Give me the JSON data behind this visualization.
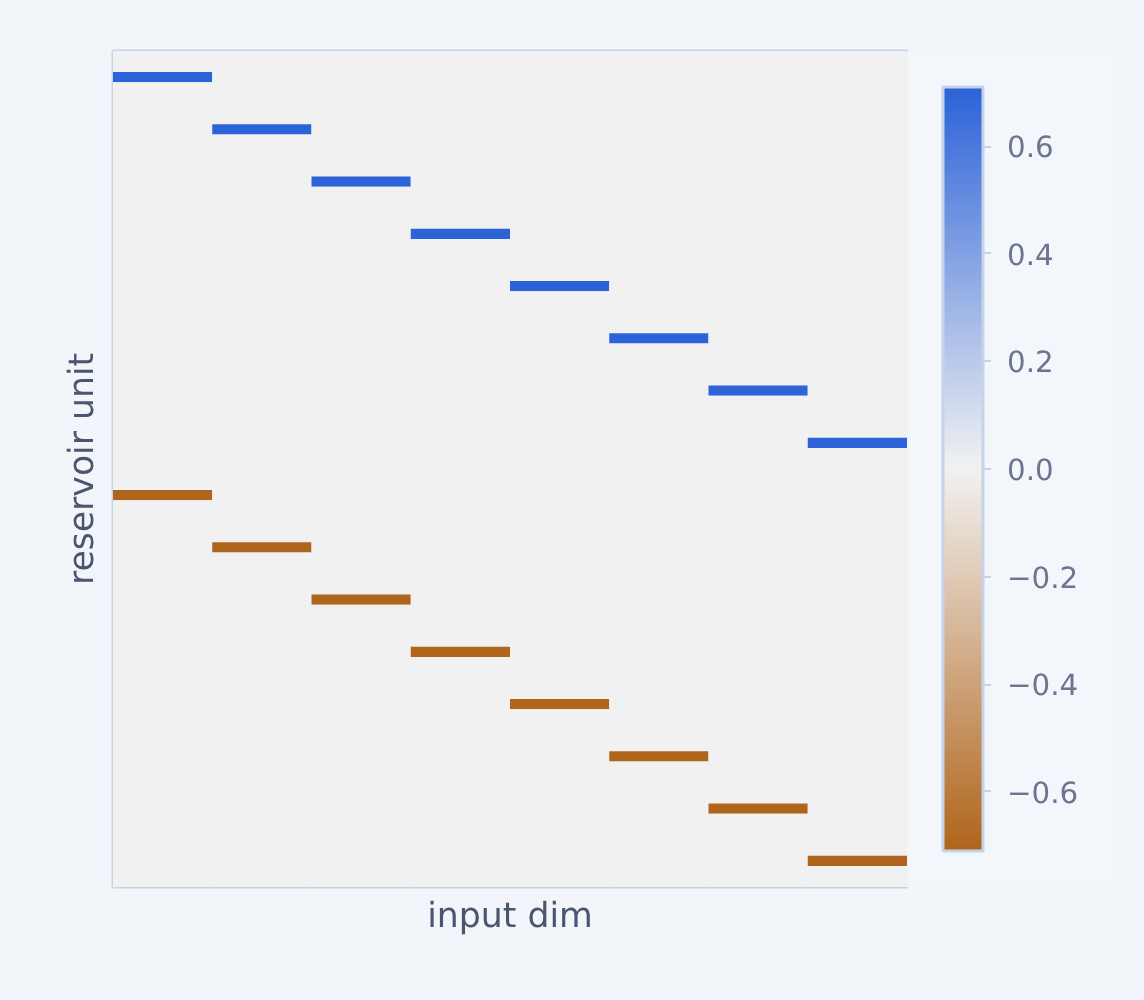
{
  "chart_data": {
    "type": "heatmap",
    "xlabel": "input dim",
    "ylabel": "reservoir unit",
    "tick_labels": false,
    "categories": [
      null,
      null,
      null,
      null,
      null,
      null,
      null,
      null
    ],
    "y_categories": [
      null,
      null,
      null,
      null,
      null,
      null,
      null,
      null,
      null,
      null,
      null,
      null,
      null,
      null,
      null,
      null,
      null,
      null,
      null,
      null,
      null,
      null,
      null,
      null,
      null,
      null,
      null,
      null,
      null,
      null,
      null,
      null,
      null,
      null,
      null,
      null,
      null,
      null,
      null,
      null,
      null,
      null,
      null,
      null,
      null,
      null,
      null,
      null,
      null,
      null,
      null,
      null,
      null,
      null,
      null,
      null,
      null,
      null,
      null,
      null,
      null,
      null,
      null,
      null,
      null,
      null,
      null,
      null,
      null,
      null,
      null,
      null,
      null,
      null,
      null,
      null,
      null,
      null,
      null,
      null
    ],
    "clim": [
      -0.71,
      0.71
    ],
    "cticks": [
      {
        "value": -0.6,
        "label": "−0.6"
      },
      {
        "value": -0.4,
        "label": "−0.4"
      },
      {
        "value": -0.2,
        "label": "−0.2"
      },
      {
        "value": 0.0,
        "label": "0.0"
      },
      {
        "value": 0.2,
        "label": "0.2"
      },
      {
        "value": 0.4,
        "label": "0.4"
      },
      {
        "value": 0.6,
        "label": "0.6"
      }
    ],
    "cells": [
      [
        0,
        0,
        0,
        0,
        0,
        0,
        0,
        0
      ],
      [
        0,
        0,
        0,
        0,
        0,
        0,
        0,
        0
      ],
      [
        0.71,
        0,
        0,
        0,
        0,
        0,
        0,
        0
      ],
      [
        0,
        0,
        0,
        0,
        0,
        0,
        0,
        0
      ],
      [
        0,
        0,
        0,
        0,
        0,
        0,
        0,
        0
      ],
      [
        0,
        0,
        0,
        0,
        0,
        0,
        0,
        0
      ],
      [
        0,
        0,
        0,
        0,
        0,
        0,
        0,
        0
      ],
      [
        0,
        0.71,
        0,
        0,
        0,
        0,
        0,
        0
      ],
      [
        0,
        0,
        0,
        0,
        0,
        0,
        0,
        0
      ],
      [
        0,
        0,
        0,
        0,
        0,
        0,
        0,
        0
      ],
      [
        0,
        0,
        0,
        0,
        0,
        0,
        0,
        0
      ],
      [
        0,
        0,
        0,
        0,
        0,
        0,
        0,
        0
      ],
      [
        0,
        0,
        0.71,
        0,
        0,
        0,
        0,
        0
      ],
      [
        0,
        0,
        0,
        0,
        0,
        0,
        0,
        0
      ],
      [
        0,
        0,
        0,
        0,
        0,
        0,
        0,
        0
      ],
      [
        0,
        0,
        0,
        0,
        0,
        0,
        0,
        0
      ],
      [
        0,
        0,
        0,
        0,
        0,
        0,
        0,
        0
      ],
      [
        0,
        0,
        0,
        0.71,
        0,
        0,
        0,
        0
      ],
      [
        0,
        0,
        0,
        0,
        0,
        0,
        0,
        0
      ],
      [
        0,
        0,
        0,
        0,
        0,
        0,
        0,
        0
      ],
      [
        0,
        0,
        0,
        0,
        0,
        0,
        0,
        0
      ],
      [
        0,
        0,
        0,
        0,
        0,
        0,
        0,
        0
      ],
      [
        0,
        0,
        0,
        0,
        0.71,
        0,
        0,
        0
      ],
      [
        0,
        0,
        0,
        0,
        0,
        0,
        0,
        0
      ],
      [
        0,
        0,
        0,
        0,
        0,
        0,
        0,
        0
      ],
      [
        0,
        0,
        0,
        0,
        0,
        0,
        0,
        0
      ],
      [
        0,
        0,
        0,
        0,
        0,
        0,
        0,
        0
      ],
      [
        0,
        0,
        0,
        0,
        0,
        0.71,
        0,
        0
      ],
      [
        0,
        0,
        0,
        0,
        0,
        0,
        0,
        0
      ],
      [
        0,
        0,
        0,
        0,
        0,
        0,
        0,
        0
      ],
      [
        0,
        0,
        0,
        0,
        0,
        0,
        0,
        0
      ],
      [
        0,
        0,
        0,
        0,
        0,
        0,
        0,
        0
      ],
      [
        0,
        0,
        0,
        0,
        0,
        0,
        0.71,
        0
      ],
      [
        0,
        0,
        0,
        0,
        0,
        0,
        0,
        0
      ],
      [
        0,
        0,
        0,
        0,
        0,
        0,
        0,
        0
      ],
      [
        0,
        0,
        0,
        0,
        0,
        0,
        0,
        0
      ],
      [
        0,
        0,
        0,
        0,
        0,
        0,
        0,
        0
      ],
      [
        0,
        0,
        0,
        0,
        0,
        0,
        0,
        0.71
      ],
      [
        0,
        0,
        0,
        0,
        0,
        0,
        0,
        0
      ],
      [
        0,
        0,
        0,
        0,
        0,
        0,
        0,
        0
      ],
      [
        0,
        0,
        0,
        0,
        0,
        0,
        0,
        0
      ],
      [
        0,
        0,
        0,
        0,
        0,
        0,
        0,
        0
      ],
      [
        -0.71,
        0,
        0,
        0,
        0,
        0,
        0,
        0
      ],
      [
        0,
        0,
        0,
        0,
        0,
        0,
        0,
        0
      ],
      [
        0,
        0,
        0,
        0,
        0,
        0,
        0,
        0
      ],
      [
        0,
        0,
        0,
        0,
        0,
        0,
        0,
        0
      ],
      [
        0,
        0,
        0,
        0,
        0,
        0,
        0,
        0
      ],
      [
        0,
        -0.71,
        0,
        0,
        0,
        0,
        0,
        0
      ],
      [
        0,
        0,
        0,
        0,
        0,
        0,
        0,
        0
      ],
      [
        0,
        0,
        0,
        0,
        0,
        0,
        0,
        0
      ],
      [
        0,
        0,
        0,
        0,
        0,
        0,
        0,
        0
      ],
      [
        0,
        0,
        0,
        0,
        0,
        0,
        0,
        0
      ],
      [
        0,
        0,
        -0.71,
        0,
        0,
        0,
        0,
        0
      ],
      [
        0,
        0,
        0,
        0,
        0,
        0,
        0,
        0
      ],
      [
        0,
        0,
        0,
        0,
        0,
        0,
        0,
        0
      ],
      [
        0,
        0,
        0,
        0,
        0,
        0,
        0,
        0
      ],
      [
        0,
        0,
        0,
        0,
        0,
        0,
        0,
        0
      ],
      [
        0,
        0,
        0,
        -0.71,
        0,
        0,
        0,
        0
      ],
      [
        0,
        0,
        0,
        0,
        0,
        0,
        0,
        0
      ],
      [
        0,
        0,
        0,
        0,
        0,
        0,
        0,
        0
      ],
      [
        0,
        0,
        0,
        0,
        0,
        0,
        0,
        0
      ],
      [
        0,
        0,
        0,
        0,
        0,
        0,
        0,
        0
      ],
      [
        0,
        0,
        0,
        0,
        -0.71,
        0,
        0,
        0
      ],
      [
        0,
        0,
        0,
        0,
        0,
        0,
        0,
        0
      ],
      [
        0,
        0,
        0,
        0,
        0,
        0,
        0,
        0
      ],
      [
        0,
        0,
        0,
        0,
        0,
        0,
        0,
        0
      ],
      [
        0,
        0,
        0,
        0,
        0,
        0,
        0,
        0
      ],
      [
        0,
        0,
        0,
        0,
        0,
        -0.71,
        0,
        0
      ],
      [
        0,
        0,
        0,
        0,
        0,
        0,
        0,
        0
      ],
      [
        0,
        0,
        0,
        0,
        0,
        0,
        0,
        0
      ],
      [
        0,
        0,
        0,
        0,
        0,
        0,
        0,
        0
      ],
      [
        0,
        0,
        0,
        0,
        0,
        0,
        0,
        0
      ],
      [
        0,
        0,
        0,
        0,
        0,
        0,
        -0.71,
        0
      ],
      [
        0,
        0,
        0,
        0,
        0,
        0,
        0,
        0
      ],
      [
        0,
        0,
        0,
        0,
        0,
        0,
        0,
        0
      ],
      [
        0,
        0,
        0,
        0,
        0,
        0,
        0,
        0
      ],
      [
        0,
        0,
        0,
        0,
        0,
        0,
        0,
        0
      ],
      [
        0,
        0,
        0,
        0,
        0,
        0,
        0,
        -0.71
      ],
      [
        0,
        0,
        0,
        0,
        0,
        0,
        0,
        0
      ],
      [
        0,
        0,
        0,
        0,
        0,
        0,
        0,
        0
      ]
    ]
  }
}
